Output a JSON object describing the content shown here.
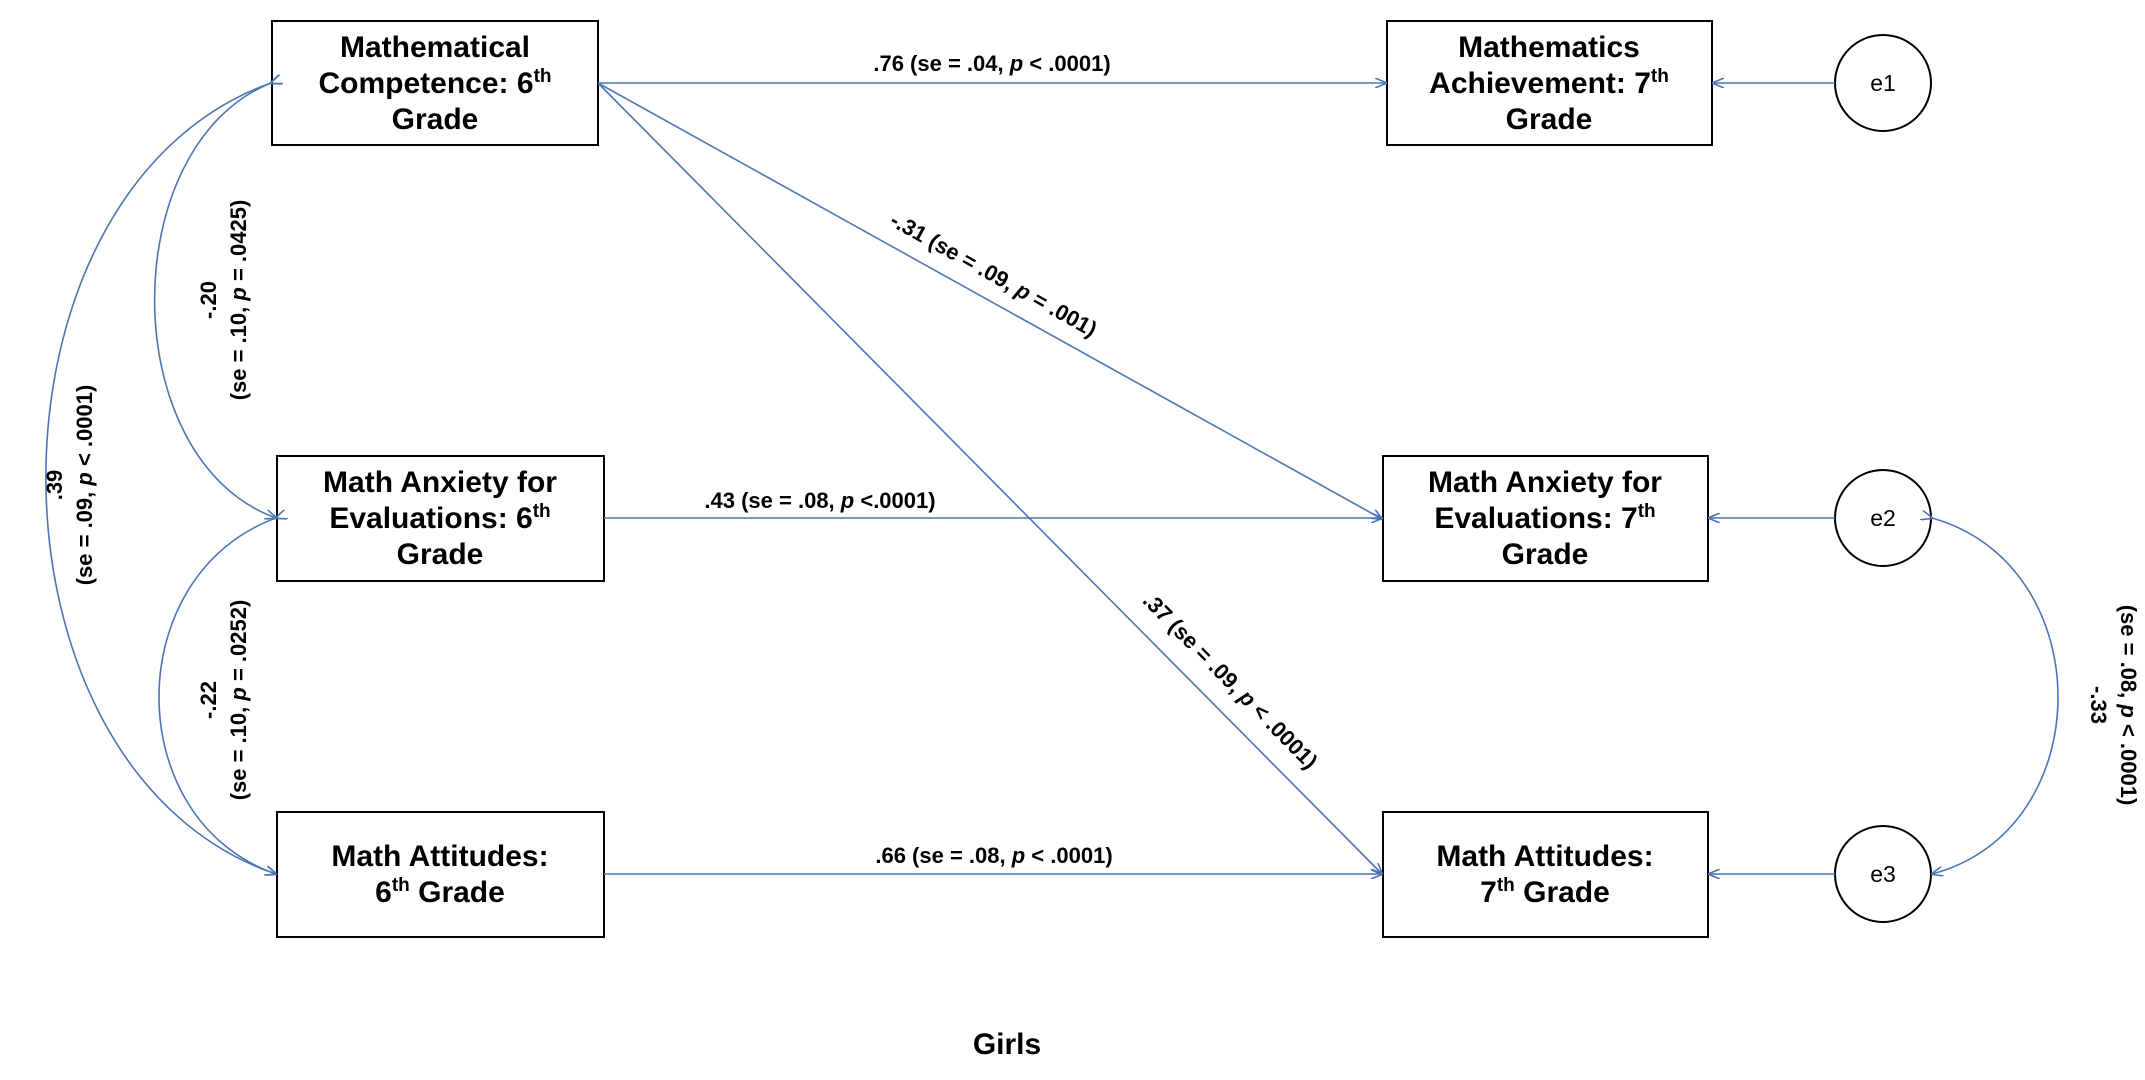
{
  "nodes": {
    "math_competence_6": {
      "lines": [
        [
          "Mathematical"
        ],
        [
          "Competence: 6",
          "th"
        ],
        [
          "Grade"
        ]
      ]
    },
    "math_achievement_7": {
      "lines": [
        [
          "Mathematics"
        ],
        [
          "Achievement: 7",
          "th"
        ],
        [
          "Grade"
        ]
      ]
    },
    "math_anxiety_6": {
      "lines": [
        [
          "Math Anxiety for"
        ],
        [
          "Evaluations: 6",
          "th"
        ],
        [
          "Grade"
        ]
      ]
    },
    "math_anxiety_7": {
      "lines": [
        [
          "Math Anxiety for"
        ],
        [
          "Evaluations: 7",
          "th"
        ],
        [
          "Grade"
        ]
      ]
    },
    "math_attitudes_6": {
      "lines": [
        [
          "Math Attitudes:"
        ],
        [
          "6",
          "th",
          " Grade"
        ]
      ]
    },
    "math_attitudes_7": {
      "lines": [
        [
          "Math Attitudes:"
        ],
        [
          "7",
          "th",
          " Grade"
        ]
      ]
    }
  },
  "errors": {
    "e1": "e1",
    "e2": "e2",
    "e3": "e3"
  },
  "paths": {
    "competence_to_achievement": {
      "coef": ".76",
      "pre": " (se = .04, ",
      "p": "p",
      "post": " < .0001)"
    },
    "competence_to_anxiety": {
      "coef": "-.31",
      "pre": " (se = .09, ",
      "p": "p",
      "post": " = .001)"
    },
    "competence_to_attitudes": {
      "coef": ".37",
      "pre": " (se = .09, ",
      "p": "p",
      "post": " < .0001)"
    },
    "anxiety_to_anxiety": {
      "coef": ".43",
      "pre": " (se = .08, ",
      "p": "p",
      "post": " <.0001)"
    },
    "attitudes_to_attitudes": {
      "coef": ".66",
      "pre": " (se = .08, ",
      "p": "p",
      "post": " < .0001)"
    }
  },
  "covariances": {
    "competence_anxiety": {
      "coef": "-.20",
      "pre": "(se = .10, ",
      "p": "p",
      "post": " = .0425)"
    },
    "anxiety_attitudes": {
      "coef": "-.22",
      "pre": "(se = .10, ",
      "p": "p",
      "post": " = .0252)"
    },
    "competence_attitudes": {
      "coef": ".39",
      "pre": "(se = .09, ",
      "p": "p",
      "post": " < .0001)"
    },
    "e2_e3": {
      "coef": "-.33",
      "pre": "(se = .08, ",
      "p": "p",
      "post": " < .0001)"
    }
  },
  "caption": "Girls",
  "colors": {
    "arrow": "#4a76b5",
    "box_border": "#000000",
    "text": "#000000"
  }
}
